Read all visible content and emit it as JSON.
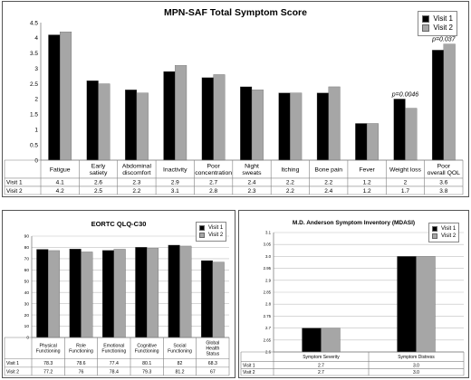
{
  "chart_data": [
    {
      "type": "bar",
      "title": "MPN-SAF Total Symptom Score",
      "categories": [
        "Fatigue",
        "Early satiety",
        "Abdominal discomfort",
        "Inactivity",
        "Poor concentration",
        "Night sweats",
        "Itching",
        "Bone pain",
        "Fever",
        "Weight loss",
        "Poor overall QOL"
      ],
      "series": [
        {
          "name": "Visit 1",
          "values": [
            4.1,
            2.6,
            2.3,
            2.9,
            2.7,
            2.4,
            2.2,
            2.2,
            1.2,
            2,
            3.6
          ],
          "labels": [
            "4.1",
            "2.6",
            "2.3",
            "2.9",
            "2.7",
            "2.4",
            "2.2",
            "2.2",
            "1.2",
            "2",
            "3.6"
          ]
        },
        {
          "name": "Visit 2",
          "values": [
            4.2,
            2.5,
            2.2,
            3.1,
            2.8,
            2.3,
            2.2,
            2.4,
            1.2,
            1.7,
            3.8
          ],
          "labels": [
            "4.2",
            "2.5",
            "2.2",
            "3.1",
            "2.8",
            "2.3",
            "2.2",
            "2.4",
            "1.2",
            "1.7",
            "3.8"
          ]
        }
      ],
      "ylim": [
        0,
        4.5
      ],
      "yticks": [
        0,
        0.5,
        1,
        1.5,
        2,
        2.5,
        3,
        3.5,
        4,
        4.5
      ],
      "ytick_labels": [
        "0",
        "0.5",
        "1",
        "1.5",
        "2",
        "2.5",
        "3",
        "3.5",
        "4",
        "4.5"
      ],
      "annotations": [
        {
          "category_index": 9,
          "text": "p=0.0046"
        },
        {
          "category_index": 10,
          "text": "p=0.037"
        }
      ],
      "legend": "top-right",
      "grid": false,
      "data_table": true
    },
    {
      "type": "bar",
      "title": "EORTC QLQ-C30",
      "categories": [
        "Physical Functioning",
        "Role Functioning",
        "Emotional Functioning",
        "Cognitive Functioning",
        "Social Functioning",
        "Global Health Status"
      ],
      "series": [
        {
          "name": "Visit 1",
          "values": [
            78.3,
            78.6,
            77.4,
            80.1,
            82,
            68.3
          ],
          "labels": [
            "78.3",
            "78.6",
            "77.4",
            "80.1",
            "82",
            "68.3"
          ]
        },
        {
          "name": "Visit 2",
          "values": [
            77.2,
            76,
            78.4,
            79.3,
            81.2,
            67
          ],
          "labels": [
            "77.2",
            "76",
            "78.4",
            "79.3",
            "81.2",
            "67"
          ]
        }
      ],
      "ylim": [
        0,
        90
      ],
      "yticks": [
        0,
        10,
        20,
        30,
        40,
        50,
        60,
        70,
        80,
        90
      ],
      "ytick_labels": [
        "0",
        "10",
        "20",
        "30",
        "40",
        "50",
        "60",
        "70",
        "80",
        "90"
      ],
      "legend": "top-right",
      "grid": true,
      "data_table": true
    },
    {
      "type": "bar",
      "title": "M.D. Anderson Symptom Inventory (MDASI)",
      "categories": [
        "Symptom Severity",
        "Symptom Distress"
      ],
      "series": [
        {
          "name": "Visit 1",
          "values": [
            2.7,
            3.0
          ],
          "labels": [
            "2.7",
            "3.0"
          ]
        },
        {
          "name": "Visit 2",
          "values": [
            2.7,
            3.0
          ],
          "labels": [
            "2.7",
            "3.0"
          ]
        }
      ],
      "ylim": [
        2.6,
        3.1
      ],
      "yticks": [
        2.6,
        2.65,
        2.7,
        2.75,
        2.8,
        2.85,
        2.9,
        2.95,
        3.0,
        3.05,
        3.1
      ],
      "ytick_labels": [
        "2.6",
        "2.65",
        "2.7",
        "2.75",
        "2.8",
        "2.85",
        "2.9",
        "2.95",
        "3.0",
        "3.05",
        "3.1"
      ],
      "legend": "top-right",
      "grid": true,
      "data_table": true
    }
  ],
  "colors": {
    "visit1": "#000000",
    "visit2": "#a6a6a6",
    "grid": "#bfbfbf",
    "axis": "#808080"
  }
}
